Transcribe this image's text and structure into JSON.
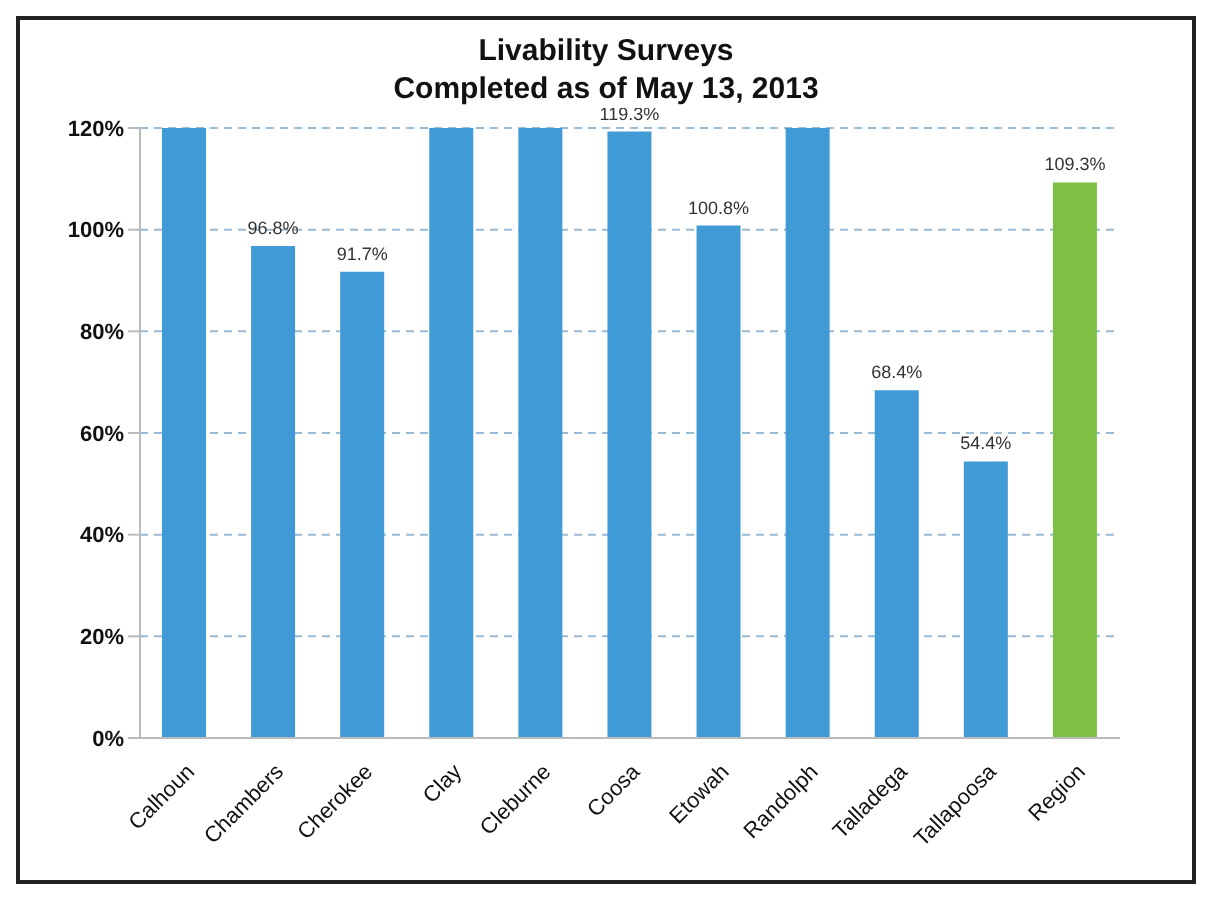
{
  "chart_data": {
    "type": "bar",
    "title": "Livability Surveys\nCompleted as of May 13, 2013",
    "categories": [
      "Calhoun",
      "Chambers",
      "Cherokee",
      "Clay",
      "Cleburne",
      "Coosa",
      "Etowah",
      "Randolph",
      "Talladega",
      "Tallapoosa",
      "Region"
    ],
    "values": [
      120,
      96.8,
      91.7,
      120,
      120,
      119.3,
      100.8,
      120,
      68.4,
      54.4,
      109.3
    ],
    "value_labels": [
      null,
      "96.8%",
      "91.7%",
      null,
      null,
      "119.3%",
      "100.8%",
      null,
      "68.4%",
      "54.4%",
      "109.3%"
    ],
    "colors": [
      "#3f9ad6",
      "#3f9ad6",
      "#3f9ad6",
      "#3f9ad6",
      "#3f9ad6",
      "#3f9ad6",
      "#3f9ad6",
      "#3f9ad6",
      "#3f9ad6",
      "#3f9ad6",
      "#7ebf45"
    ],
    "ylim": [
      0,
      120
    ],
    "yticks": [
      {
        "value": 0,
        "label": "0%"
      },
      {
        "value": 20,
        "label": "20%"
      },
      {
        "value": 40,
        "label": "40%"
      },
      {
        "value": 60,
        "label": "60%"
      },
      {
        "value": 80,
        "label": "80%"
      },
      {
        "value": 100,
        "label": "100%"
      },
      {
        "value": 120,
        "label": "120%"
      }
    ],
    "grid": "y",
    "legend": false
  }
}
